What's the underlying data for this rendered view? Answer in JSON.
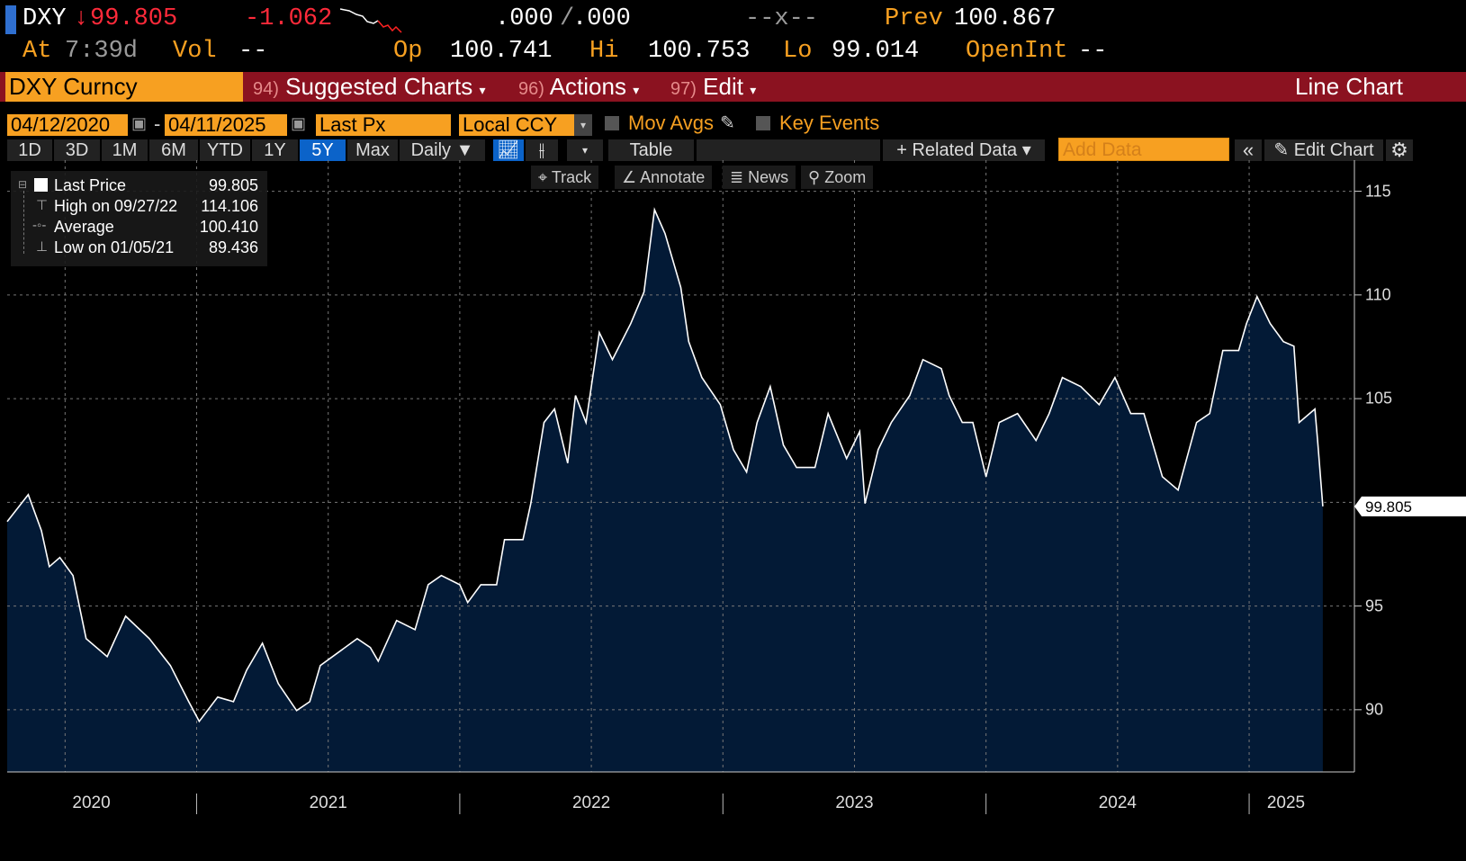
{
  "quote": {
    "ticker": "DXY",
    "arrow": "↓",
    "last": "99.805",
    "change": "-1.062",
    "bid_ask_left": ".000",
    "bid_ask_sep": "/",
    "bid_ask_right": ".000",
    "size": "--x--",
    "prev_label": "Prev",
    "prev": "100.867",
    "at_label": "At",
    "time": "7:39d",
    "vol_label": "Vol",
    "vol": "--",
    "op_label": "Op",
    "op": "100.741",
    "hi_label": "Hi",
    "hi": "100.753",
    "lo_label": "Lo",
    "lo": "99.014",
    "oi_label": "OpenInt",
    "oi": "--"
  },
  "menu": {
    "security": "DXY Curncy",
    "items": [
      {
        "num": "94)",
        "label": "Suggested Charts"
      },
      {
        "num": "96)",
        "label": "Actions"
      },
      {
        "num": "97)",
        "label": "Edit"
      }
    ],
    "chart_type": "Line Chart",
    "dropdown_glyph": "▾"
  },
  "controls": {
    "start_date": "04/12/2020",
    "dash": "-",
    "end_date": "04/11/2025",
    "field": "Last Px",
    "currency": "Local CCY",
    "mov_avgs": "Mov Avgs",
    "key_events": "Key Events"
  },
  "periods": [
    "1D",
    "3D",
    "1M",
    "6M",
    "YTD",
    "1Y",
    "5Y",
    "Max"
  ],
  "selected_period": "5Y",
  "toolbar": {
    "frequency": "Daily ▼",
    "table": "Table",
    "related": "+ Related Data ▾",
    "add_data_placeholder": "Add Data",
    "collapse": "«",
    "edit_chart": "Edit Chart"
  },
  "tools": [
    "Track",
    "Annotate",
    "News",
    "Zoom"
  ],
  "legend": {
    "rows": [
      {
        "label": "Last Price",
        "value": "99.805"
      },
      {
        "label": "High on 09/27/22",
        "value": "114.106"
      },
      {
        "label": "Average",
        "value": "100.410"
      },
      {
        "label": "Low on 01/05/21",
        "value": "89.436"
      }
    ]
  },
  "chart_data": {
    "type": "area",
    "title": "DXY Curncy Line Chart",
    "series_name": "Last Price",
    "last_value_label": "99.805",
    "xlim": [
      2020.28,
      2025.4
    ],
    "ylim": [
      87,
      116.5
    ],
    "yticks": [
      115,
      110,
      105,
      95,
      90
    ],
    "year_labels": [
      {
        "label": "2020",
        "center": 2020.6
      },
      {
        "label": "2021",
        "center": 2021.5
      },
      {
        "label": "2022",
        "center": 2022.5
      },
      {
        "label": "2023",
        "center": 2023.5
      },
      {
        "label": "2024",
        "center": 2024.5
      },
      {
        "label": "2025",
        "center": 2025.14
      }
    ],
    "year_boundaries": [
      2021,
      2022,
      2023,
      2024,
      2025
    ],
    "fill_color": "#031a36",
    "line_color": "#ffffff",
    "x": [
      2020.28,
      2020.36,
      2020.41,
      2020.44,
      2020.48,
      2020.53,
      2020.58,
      2020.66,
      2020.73,
      2020.82,
      2020.9,
      2020.97,
      2021.01,
      2021.08,
      2021.14,
      2021.19,
      2021.25,
      2021.31,
      2021.38,
      2021.43,
      2021.47,
      2021.54,
      2021.61,
      2021.66,
      2021.69,
      2021.76,
      2021.83,
      2021.88,
      2021.93,
      2022.0,
      2022.03,
      2022.08,
      2022.14,
      2022.17,
      2022.24,
      2022.27,
      2022.32,
      2022.36,
      2022.41,
      2022.44,
      2022.48,
      2022.53,
      2022.58,
      2022.65,
      2022.7,
      2022.74,
      2022.78,
      2022.84,
      2022.87,
      2022.92,
      2022.99,
      2023.04,
      2023.09,
      2023.13,
      2023.18,
      2023.23,
      2023.28,
      2023.35,
      2023.4,
      2023.47,
      2023.52,
      2023.54,
      2023.59,
      2023.64,
      2023.71,
      2023.76,
      2023.83,
      2023.86,
      2023.91,
      2023.95,
      2024.0,
      2024.05,
      2024.12,
      2024.19,
      2024.24,
      2024.29,
      2024.36,
      2024.43,
      2024.49,
      2024.55,
      2024.6,
      2024.67,
      2024.73,
      2024.8,
      2024.85,
      2024.9,
      2024.96,
      2024.99,
      2025.03,
      2025.08,
      2025.13,
      2025.17,
      2025.19,
      2025.25,
      2025.26,
      2025.28
    ],
    "y": [
      99.07,
      100.37,
      98.64,
      96.9,
      97.34,
      96.47,
      93.43,
      92.56,
      94.51,
      93.43,
      92.13,
      90.39,
      89.44,
      90.61,
      90.39,
      91.91,
      93.21,
      91.26,
      89.96,
      90.39,
      92.13,
      92.78,
      93.43,
      93.0,
      92.34,
      94.3,
      93.86,
      96.03,
      96.47,
      96.03,
      95.17,
      96.03,
      96.03,
      98.2,
      98.2,
      99.94,
      103.85,
      104.5,
      101.89,
      105.15,
      103.85,
      108.19,
      106.88,
      108.62,
      110.14,
      114.11,
      112.96,
      110.36,
      107.75,
      106.02,
      104.71,
      102.54,
      101.46,
      103.85,
      105.58,
      102.76,
      101.68,
      101.68,
      104.28,
      102.11,
      103.41,
      99.94,
      102.54,
      103.85,
      105.15,
      106.88,
      106.45,
      105.15,
      103.85,
      103.85,
      101.24,
      103.85,
      104.28,
      102.98,
      104.28,
      106.02,
      105.58,
      104.71,
      106.02,
      104.28,
      104.28,
      101.24,
      100.59,
      103.85,
      104.28,
      107.32,
      107.32,
      108.62,
      109.92,
      108.62,
      107.75,
      107.53,
      103.85,
      104.5,
      102.98,
      99.805
    ]
  }
}
